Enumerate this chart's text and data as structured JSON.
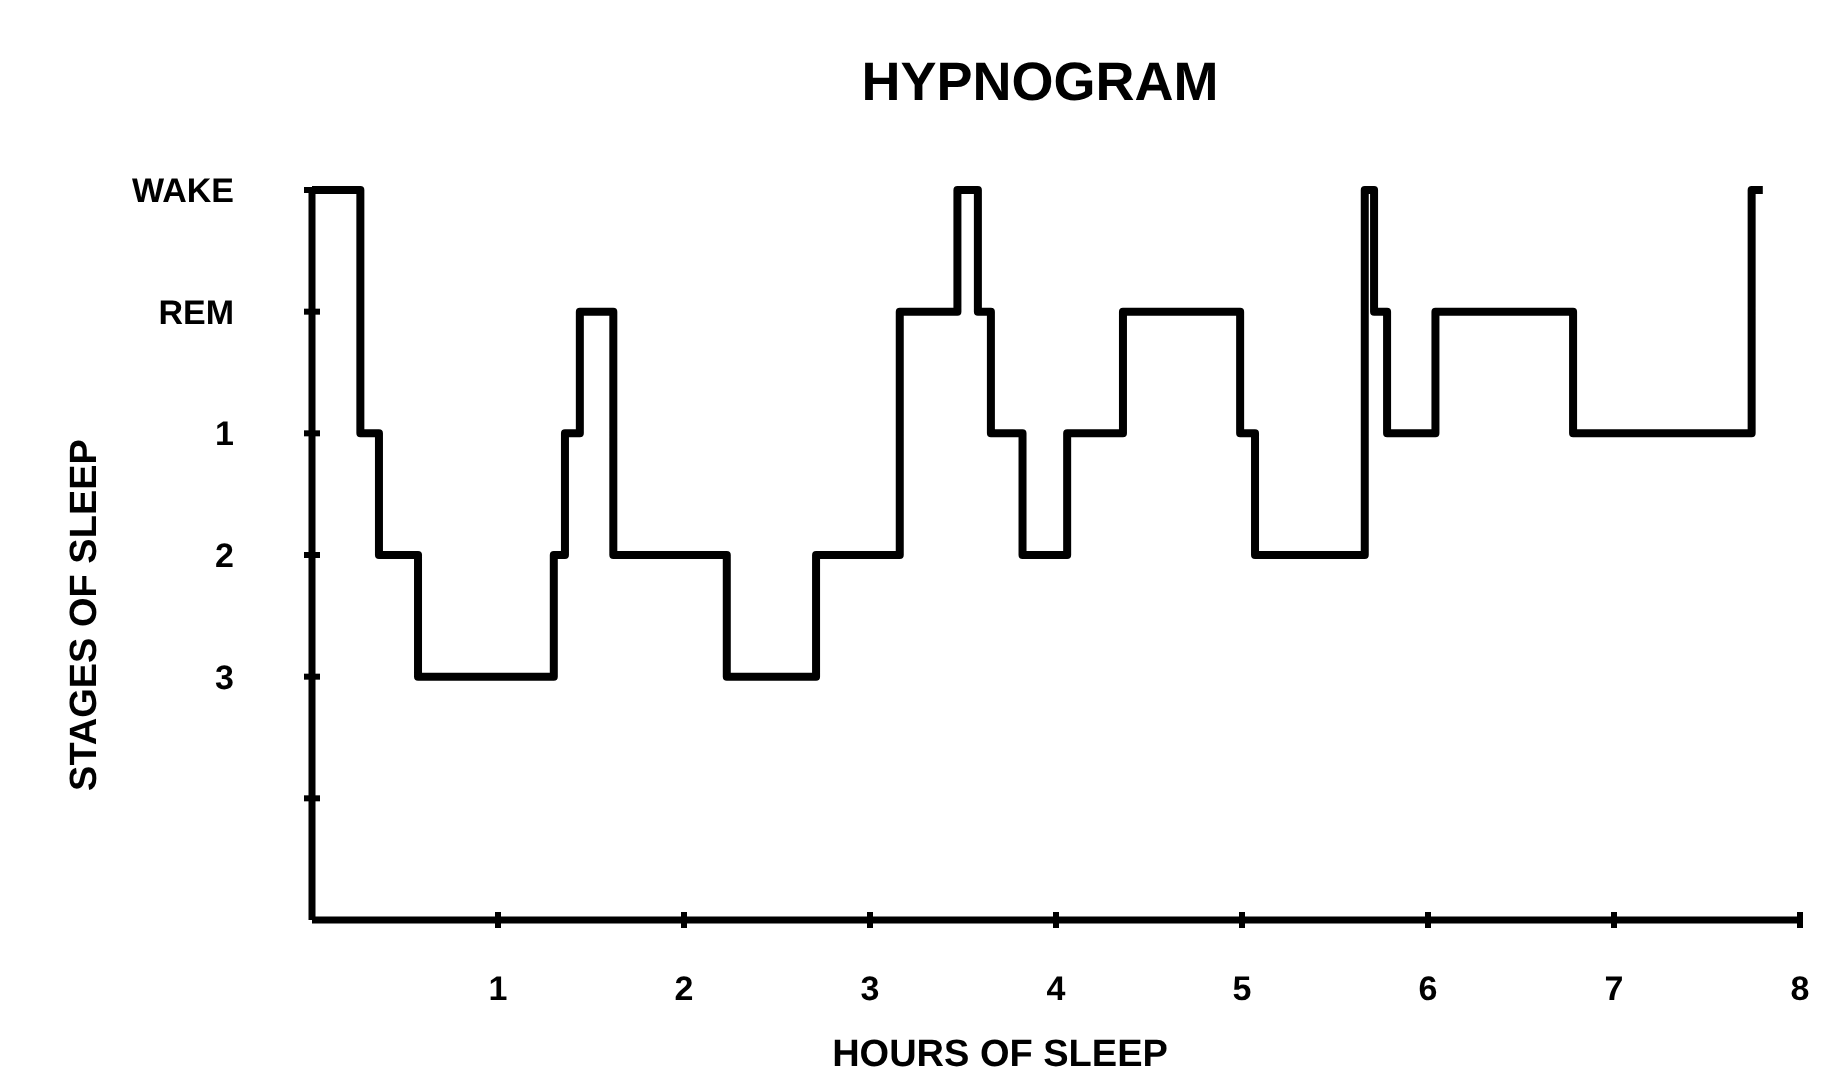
{
  "chart_data": {
    "type": "step",
    "title": "HYPNOGRAM",
    "xlabel": "HOURS OF SLEEP",
    "ylabel": "STAGES OF SLEEP",
    "x": [
      0,
      0.26,
      0.36,
      0.57,
      1.3,
      1.36,
      1.44,
      1.62,
      2.23,
      2.71,
      3.16,
      3.47,
      3.58,
      3.65,
      3.82,
      4.06,
      4.36,
      4.99,
      5.07,
      5.66,
      5.71,
      5.78,
      6.04,
      6.78,
      7.74,
      7.8
    ],
    "series": [
      {
        "color": "#000000",
        "values": [
          -1,
          1,
          2,
          3,
          2,
          1,
          0,
          2,
          3,
          2,
          0,
          -1,
          0,
          1,
          2,
          1,
          0,
          1,
          2,
          -1,
          0,
          1,
          0,
          1,
          -1,
          -1
        ]
      }
    ],
    "xlim": [
      0,
      8
    ],
    "xticks": [
      1,
      2,
      3,
      4,
      5,
      6,
      7,
      8
    ],
    "ylim": [
      5,
      -1
    ],
    "yticks": [
      {
        "value": -1,
        "label": "WAKE"
      },
      {
        "value": 0,
        "label": "REM"
      },
      1,
      2,
      3,
      {
        "value": 4,
        "label": null
      }
    ],
    "grid": false,
    "marker": "none",
    "line_style": "solid"
  }
}
